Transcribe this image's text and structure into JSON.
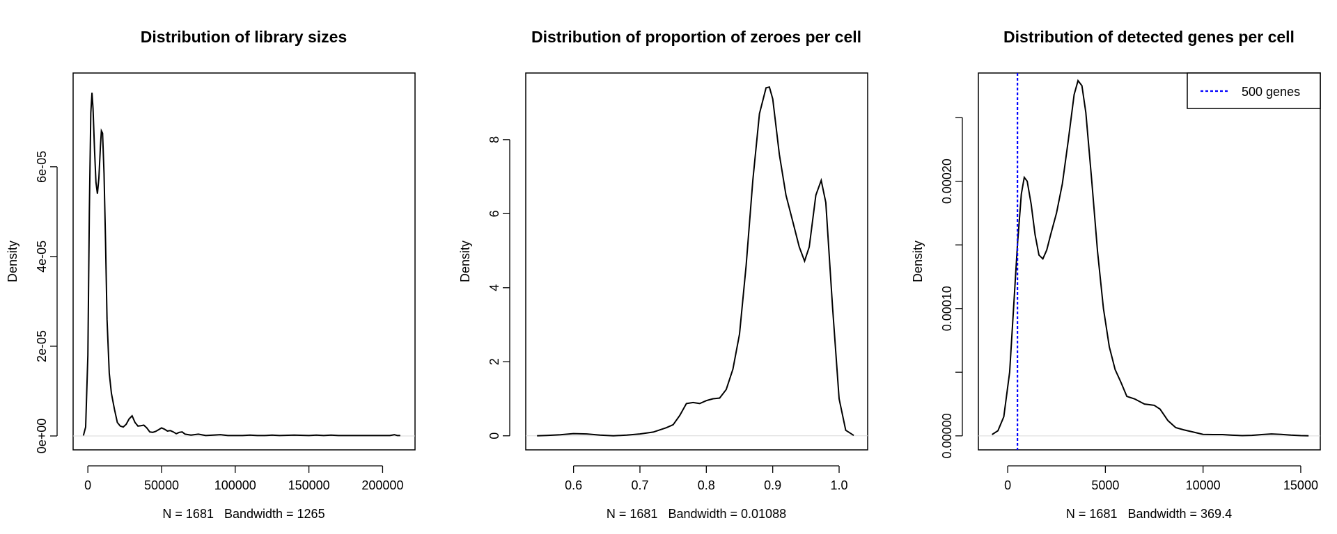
{
  "chart_data": [
    {
      "type": "line",
      "title": "Distribution of library sizes",
      "xlabel": "N = 1681   Bandwidth = 1265",
      "ylabel": "Density",
      "xlim": [
        -10000,
        222000
      ],
      "ylim": [
        -3.1e-06,
        8.09e-05
      ],
      "xticks": [
        0,
        50000,
        100000,
        150000,
        200000
      ],
      "xtick_labels": [
        "0",
        "50000",
        "100000",
        "150000",
        "200000"
      ],
      "yticks": [
        0,
        2e-05,
        4e-05,
        6e-05
      ],
      "ytick_labels": [
        "0e+00",
        "2e-05",
        "4e-05",
        "6e-05"
      ],
      "series": [
        {
          "x": [
            -3000,
            -1500,
            0,
            1000,
            2000,
            2800,
            3500,
            4500,
            5500,
            6500,
            7500,
            8500,
            9200,
            10000,
            11000,
            12000,
            13000,
            14500,
            16000,
            18000,
            20000,
            22000,
            24000,
            26000,
            28000,
            30000,
            32000,
            34000,
            36000,
            38000,
            40000,
            42000,
            44000,
            46000,
            48000,
            50000,
            52000,
            54000,
            56000,
            58000,
            60000,
            62000,
            64000,
            66000,
            70000,
            75000,
            80000,
            85000,
            90000,
            95000,
            100000,
            105000,
            110000,
            115000,
            120000,
            125000,
            130000,
            140000,
            150000,
            155000,
            160000,
            165000,
            170000,
            180000,
            190000,
            200000,
            205000,
            208000,
            210000,
            212000
          ],
          "y": [
            1e-07,
            2e-06,
            1.8e-05,
            5e-05,
            7.2e-05,
            7.65e-05,
            7.3e-05,
            6.4e-05,
            5.65e-05,
            5.4e-05,
            5.75e-05,
            6.45e-05,
            6.8e-05,
            6.75e-05,
            5.85e-05,
            4.3e-05,
            2.6e-05,
            1.4e-05,
            9.5e-06,
            6e-06,
            3e-06,
            2.2e-06,
            2e-06,
            2.6e-06,
            3.8e-06,
            4.5e-06,
            3e-06,
            2.2e-06,
            2.3e-06,
            2.4e-06,
            1.8e-06,
            9e-07,
            8e-07,
            1e-06,
            1.4e-06,
            1.8e-06,
            1.5e-06,
            1.1e-06,
            1.2e-06,
            9e-07,
            5e-07,
            8e-07,
            9e-07,
            4e-07,
            2e-07,
            4e-07,
            1e-07,
            2e-07,
            3e-07,
            1e-07,
            1e-07,
            1e-07,
            2e-07,
            1e-07,
            1e-07,
            2e-07,
            1e-07,
            2e-07,
            1e-07,
            2e-07,
            1e-07,
            2e-07,
            1e-07,
            1e-07,
            1e-07,
            1e-07,
            1e-07,
            3e-07,
            1e-07,
            1e-07
          ]
        }
      ]
    },
    {
      "type": "line",
      "title": "Distribution of proportion of zeroes per cell",
      "xlabel": "N = 1681   Bandwidth = 0.01088",
      "ylabel": "Density",
      "xlim": [
        0.528,
        1.043
      ],
      "ylim": [
        -0.38,
        9.8
      ],
      "xticks": [
        0.6,
        0.7,
        0.8,
        0.9,
        1.0
      ],
      "xtick_labels": [
        "0.6",
        "0.7",
        "0.8",
        "0.9",
        "1.0"
      ],
      "yticks": [
        0,
        2,
        4,
        6,
        8
      ],
      "ytick_labels": [
        "0",
        "2",
        "4",
        "6",
        "8"
      ],
      "series": [
        {
          "x": [
            0.545,
            0.56,
            0.58,
            0.6,
            0.62,
            0.64,
            0.66,
            0.68,
            0.7,
            0.72,
            0.74,
            0.75,
            0.76,
            0.77,
            0.78,
            0.79,
            0.8,
            0.81,
            0.82,
            0.83,
            0.84,
            0.85,
            0.86,
            0.87,
            0.88,
            0.89,
            0.895,
            0.9,
            0.91,
            0.92,
            0.93,
            0.94,
            0.948,
            0.955,
            0.965,
            0.973,
            0.98,
            0.99,
            1.0,
            1.01,
            1.022
          ],
          "y": [
            0,
            0.01,
            0.03,
            0.06,
            0.05,
            0.02,
            0.0,
            0.02,
            0.05,
            0.1,
            0.22,
            0.3,
            0.55,
            0.87,
            0.9,
            0.87,
            0.95,
            1.0,
            1.02,
            1.25,
            1.8,
            2.75,
            4.6,
            6.9,
            8.7,
            9.4,
            9.42,
            9.1,
            7.6,
            6.5,
            5.8,
            5.1,
            4.72,
            5.1,
            6.5,
            6.9,
            6.3,
            3.5,
            1.0,
            0.15,
            0.01
          ]
        }
      ]
    },
    {
      "type": "line",
      "title": "Distribution of detected genes per cell",
      "xlabel": "N = 1681   Bandwidth = 369.4",
      "ylabel": "Density",
      "xlim": [
        -1500,
        16000
      ],
      "ylim": [
        -1.1e-05,
        0.000285
      ],
      "xticks": [
        0,
        5000,
        10000,
        15000
      ],
      "xtick_labels": [
        "0",
        "5000",
        "10000",
        "15000"
      ],
      "yticks": [
        0,
        5e-05,
        0.0001,
        0.00015,
        0.0002,
        0.00025
      ],
      "ytick_labels": [
        "0.00000",
        "",
        "0.00010",
        "",
        "0.00020",
        ""
      ],
      "series": [
        {
          "x": [
            -800,
            -500,
            -200,
            100,
            300,
            500,
            700,
            850,
            1000,
            1200,
            1400,
            1600,
            1800,
            2000,
            2200,
            2500,
            2800,
            3100,
            3400,
            3600,
            3800,
            4000,
            4300,
            4600,
            4900,
            5200,
            5500,
            5800,
            6100,
            6500,
            7000,
            7500,
            7800,
            8200,
            8600,
            9000,
            9500,
            10000,
            10500,
            11000,
            11500,
            12000,
            12500,
            13000,
            13500,
            14000,
            14500,
            15000,
            15400
          ],
          "y": [
            1e-06,
            4e-06,
            1.5e-05,
            5e-05,
            0.0001,
            0.00015,
            0.00019,
            0.000203,
            0.0002,
            0.000182,
            0.000158,
            0.000142,
            0.000139,
            0.000146,
            0.000158,
            0.000175,
            0.000198,
            0.000232,
            0.000268,
            0.000279,
            0.000275,
            0.000254,
            0.000201,
            0.000145,
            0.0001,
            7e-05,
            5.2e-05,
            4.2e-05,
            3.1e-05,
            2.9e-05,
            2.5e-05,
            2.4e-05,
            2.1e-05,
            1.2e-05,
            6.5e-06,
            4.8e-06,
            3e-06,
            1.2e-06,
            1e-06,
            1e-06,
            5e-07,
            2e-07,
            4e-07,
            1e-06,
            1.5e-06,
            1.2e-06,
            6e-07,
            2e-07,
            1e-07
          ]
        }
      ],
      "vline": {
        "x": 500,
        "color": "#0000ff"
      },
      "legend": {
        "position": "top-right",
        "label": "500 genes",
        "color": "#0000ff",
        "style": "dashed"
      }
    }
  ]
}
